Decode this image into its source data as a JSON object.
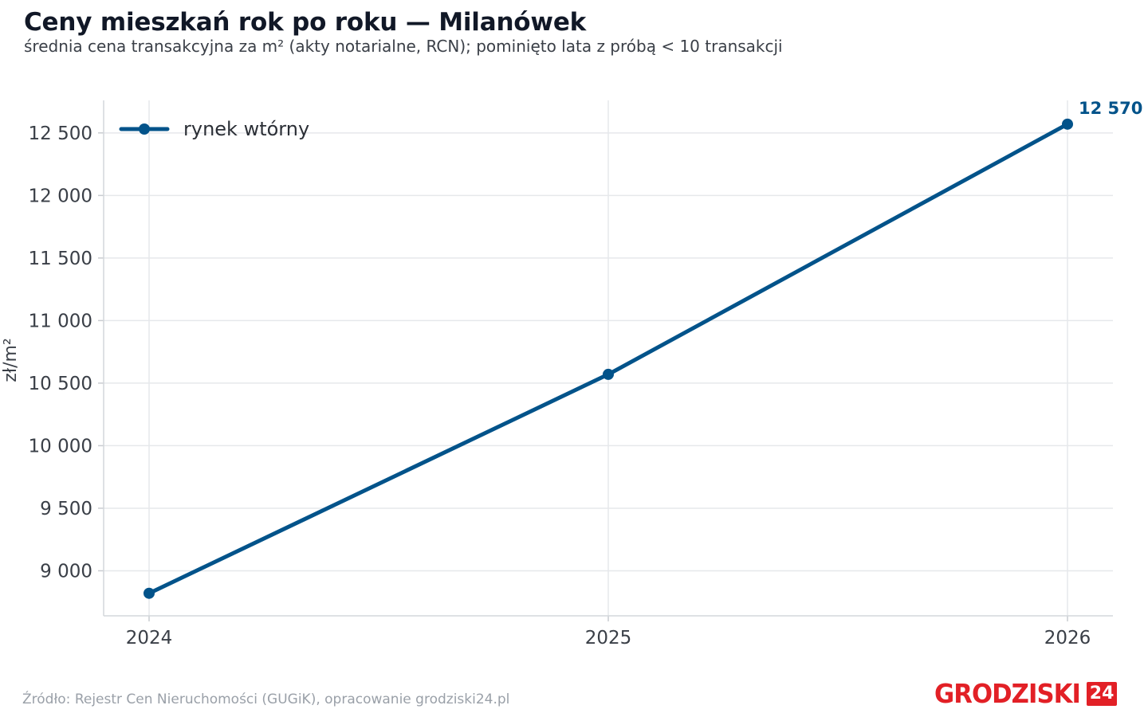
{
  "header": {
    "title": "Ceny mieszkań rok po roku — Milanówek",
    "subtitle": "średnia cena transakcyjna za m² (akty notarialne, RCN); pominięto lata z próbą < 10 transakcji"
  },
  "footer": {
    "source": "Źródło: Rejestr Cen Nieruchomości (GUGiK), opracowanie grodziski24.pl",
    "logo_text": "GRODZISKI",
    "logo_badge": "24"
  },
  "colors": {
    "series": "#02538a",
    "grid": "#e6e8eb",
    "brand": "#e22026"
  },
  "chart_data": {
    "type": "line",
    "title": "Ceny mieszkań rok po roku — Milanówek",
    "subtitle": "średnia cena transakcyjna za m² (akty notarialne, RCN); pominięto lata z próbą < 10 transakcji",
    "xlabel": "",
    "ylabel": "zł/m²",
    "x": [
      "2024",
      "2025",
      "2026"
    ],
    "series": [
      {
        "name": "rynek wtórny",
        "values": [
          8820,
          10570,
          12570
        ],
        "color": "#02538a"
      }
    ],
    "y_ticks": [
      9000,
      9500,
      10000,
      10500,
      11000,
      11500,
      12000,
      12500
    ],
    "y_tick_labels": [
      "9 000",
      "9 500",
      "10 000",
      "10 500",
      "11 000",
      "11 500",
      "12 000",
      "12 500"
    ],
    "ylim": [
      8640,
      12760
    ],
    "grid": true,
    "legend": "top-left",
    "annotations": [
      {
        "x": "2026",
        "text": "12 570"
      }
    ]
  }
}
